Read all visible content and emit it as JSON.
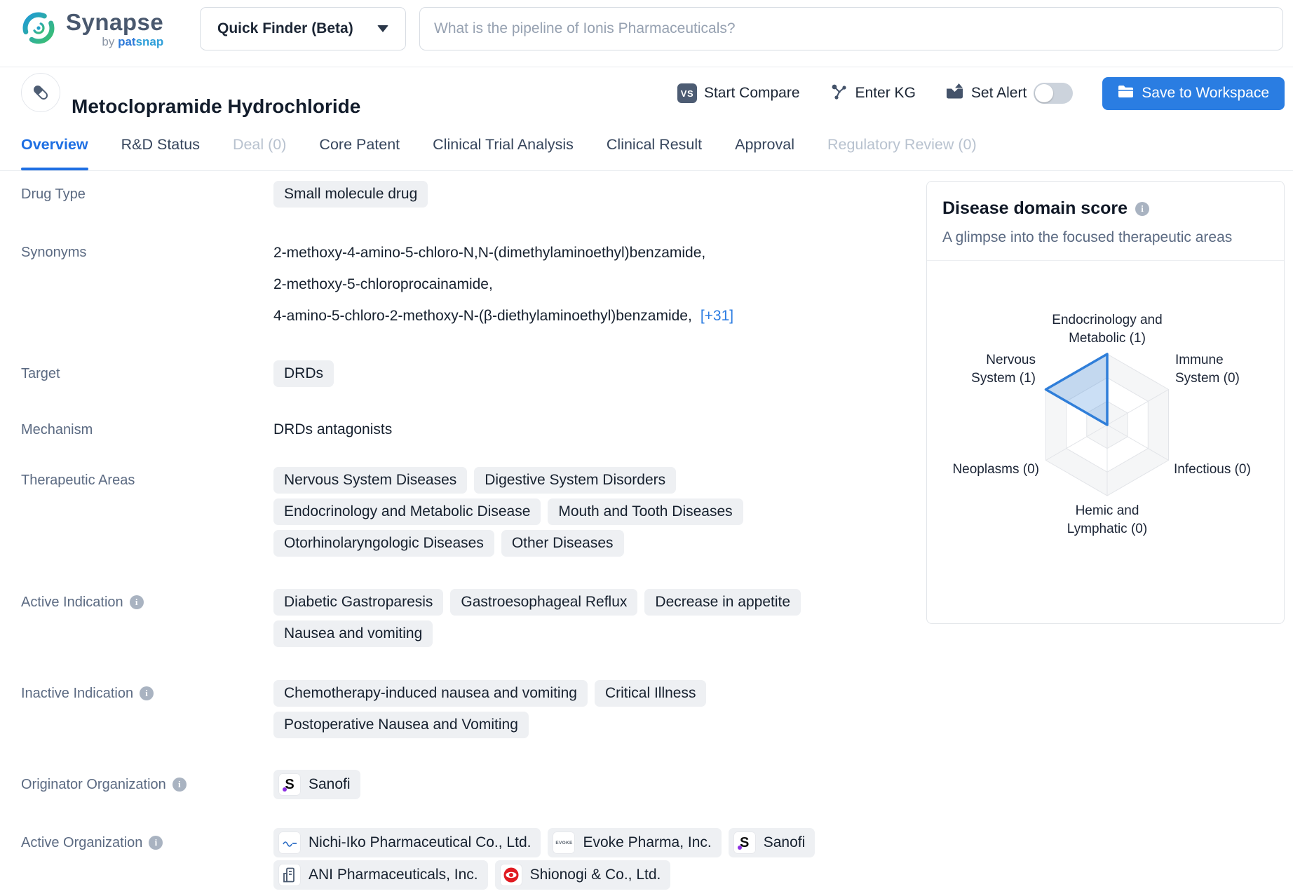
{
  "header": {
    "brand": {
      "name": "Synapse",
      "byline_prefix": "by",
      "byline_pat": "pat",
      "byline_snap": "snap"
    },
    "quick_finder": {
      "label": "Quick Finder (Beta)"
    },
    "search": {
      "placeholder": "What is the pipeline of Ionis Pharmaceuticals?"
    }
  },
  "title_bar": {
    "title": "Metoclopramide Hydrochloride",
    "compare_badge": "VS",
    "start_compare": "Start Compare",
    "enter_kg": "Enter KG",
    "set_alert": "Set Alert",
    "save_to_workspace": "Save to Workspace"
  },
  "tabs": [
    {
      "label": "Overview",
      "state": "active"
    },
    {
      "label": "R&D Status",
      "state": "normal"
    },
    {
      "label": "Deal (0)",
      "state": "disabled"
    },
    {
      "label": "Core Patent",
      "state": "normal"
    },
    {
      "label": "Clinical Trial Analysis",
      "state": "normal"
    },
    {
      "label": "Clinical Result",
      "state": "normal"
    },
    {
      "label": "Approval",
      "state": "normal"
    },
    {
      "label": "Regulatory Review (0)",
      "state": "disabled"
    }
  ],
  "fields": {
    "drug_type": {
      "label": "Drug Type",
      "value": "Small molecule drug"
    },
    "synonyms": {
      "label": "Synonyms",
      "lines": [
        "2-methoxy-4-amino-5-chloro-N,N-(dimethylaminoethyl)benzamide,",
        "2-methoxy-5-chloroprocainamide,",
        "4-amino-5-chloro-2-methoxy-N-(β-diethylaminoethyl)benzamide,"
      ],
      "more_link": "[+31]"
    },
    "target": {
      "label": "Target",
      "value": "DRDs"
    },
    "mechanism": {
      "label": "Mechanism",
      "value": "DRDs antagonists"
    },
    "therapeutic_areas": {
      "label": "Therapeutic Areas",
      "tags": [
        "Nervous System Diseases",
        "Digestive System Disorders",
        "Endocrinology and Metabolic Disease",
        "Mouth and Tooth Diseases",
        "Otorhinolaryngologic Diseases",
        "Other Diseases"
      ]
    },
    "active_indication": {
      "label": "Active Indication",
      "tags": [
        "Diabetic Gastroparesis",
        "Gastroesophageal Reflux",
        "Decrease in appetite",
        "Nausea and vomiting"
      ]
    },
    "inactive_indication": {
      "label": "Inactive Indication",
      "tags": [
        "Chemotherapy-induced nausea and vomiting",
        "Critical Illness",
        "Postoperative Nausea and Vomiting"
      ]
    },
    "originator_organization": {
      "label": "Originator Organization",
      "orgs": [
        {
          "name": "Sanofi",
          "logo_letter": "S"
        }
      ]
    },
    "active_organization": {
      "label": "Active Organization",
      "orgs": [
        {
          "name": "Nichi-Iko Pharmaceutical Co., Ltd."
        },
        {
          "name": "Evoke Pharma, Inc.",
          "logo_text": "EVOKE"
        },
        {
          "name": "Sanofi",
          "logo_letter": "S"
        },
        {
          "name": "ANI Pharmaceuticals, Inc."
        },
        {
          "name": "Shionogi & Co., Ltd."
        }
      ]
    }
  },
  "panel": {
    "title": "Disease domain score",
    "subtitle": "A glimpse into the focused therapeutic areas"
  },
  "chart_data": {
    "type": "radar",
    "title": "Disease domain score",
    "axes": [
      "Endocrinology and Metabolic",
      "Immune System",
      "Infectious",
      "Hemic and Lymphatic",
      "Neoplasms",
      "Nervous System"
    ],
    "values": [
      1,
      0,
      0,
      0,
      0,
      1
    ],
    "max": 1,
    "rings": 3,
    "legend_position": "none",
    "grid": true,
    "series_color": "#2F7ED9",
    "fill_color": "rgba(47,126,217,0.25)",
    "axis_label_lines": [
      [
        "Endocrinology and",
        "Metabolic (1)"
      ],
      [
        "Immune",
        "System (0)"
      ],
      [
        "Infectious (0)"
      ],
      [
        "Hemic and",
        "Lymphatic (0)"
      ],
      [
        "Neoplasms (0)"
      ],
      [
        "Nervous",
        "System (1)"
      ]
    ]
  }
}
